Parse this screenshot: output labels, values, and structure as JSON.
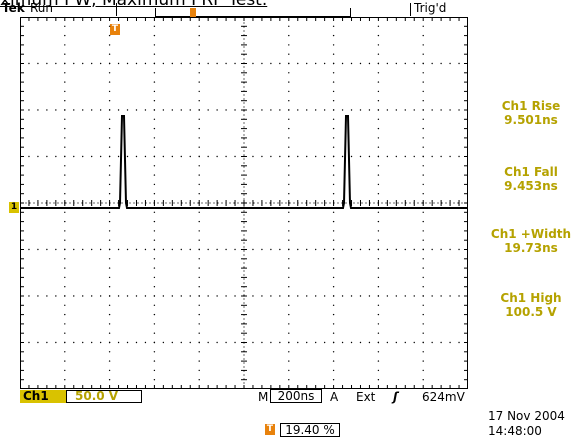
{
  "caption": "ximum PW, Maximum PRF Test.",
  "header": {
    "brand": "Tek",
    "acq_state": "Run",
    "trigger_status": "Trig'd"
  },
  "measurements": [
    {
      "label": "Ch1 Rise",
      "value": "9.501ns"
    },
    {
      "label": "Ch1 Fall",
      "value": "9.453ns"
    },
    {
      "label": "Ch1 +Width",
      "value": "19.73ns"
    },
    {
      "label": "Ch1 High",
      "value": "100.5 V"
    }
  ],
  "channel": {
    "label": "Ch1",
    "scale": "50.0 V"
  },
  "timebase": {
    "prefix": "M",
    "value": "200ns"
  },
  "trigger": {
    "mode": "A",
    "source": "Ext",
    "slope_symbol": "ʃ",
    "level": "624mV"
  },
  "trigger_position": {
    "value": "19.40 %"
  },
  "markers": {
    "channel_ground": "1",
    "trigger_marker": "T"
  },
  "datetime": {
    "date": "17 Nov 2004",
    "time": "14:48:00"
  },
  "colors": {
    "measurement_text": "#b5a200",
    "channel_badge": "#d9c200",
    "trigger_marker": "#e8820c"
  }
}
